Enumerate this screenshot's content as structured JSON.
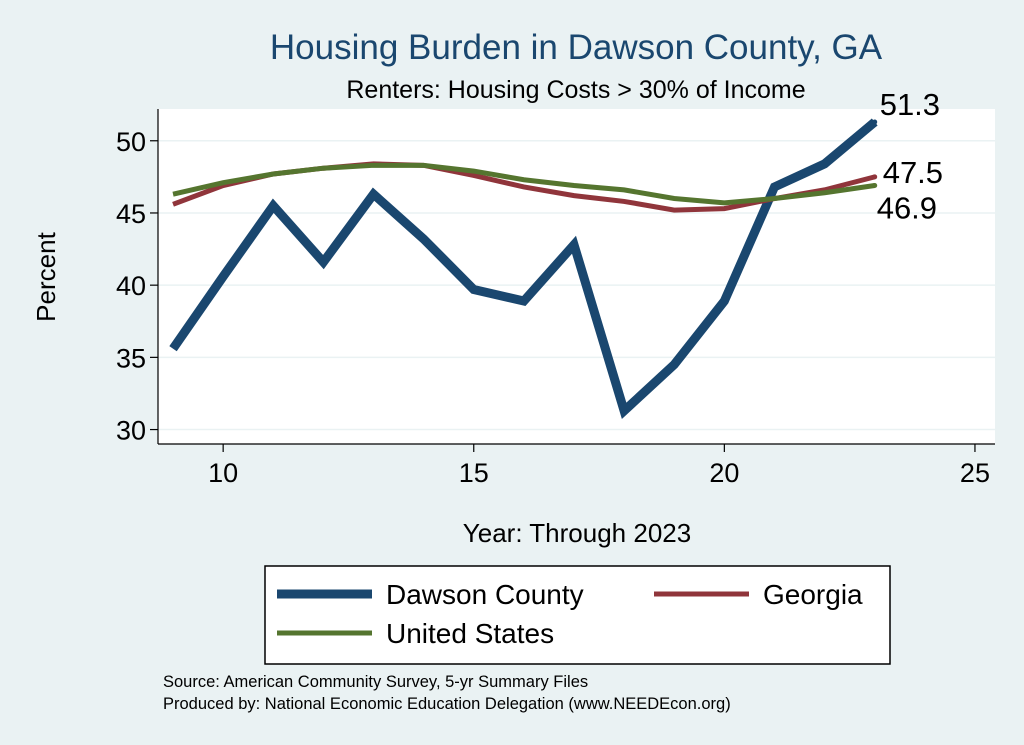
{
  "chart_data": {
    "type": "line",
    "title": "Housing Burden in Dawson County, GA",
    "subtitle": "Renters: Housing Costs > 30% of Income",
    "xlabel": "Year: Through 2023",
    "ylabel": "Percent",
    "xlim": [
      8.7,
      25.4
    ],
    "ylim": [
      29.0,
      52.2
    ],
    "x_ticks": [
      10,
      15,
      20,
      25
    ],
    "y_ticks": [
      30,
      35,
      40,
      45,
      50
    ],
    "grid": true,
    "x": [
      9,
      10,
      11,
      12,
      13,
      14,
      15,
      16,
      17,
      18,
      19,
      20,
      21,
      22,
      23
    ],
    "series": [
      {
        "name": "Dawson County",
        "color": "#1a476f",
        "values": [
          35.6,
          40.6,
          45.5,
          41.6,
          46.3,
          43.2,
          39.7,
          38.9,
          42.8,
          31.3,
          34.5,
          38.9,
          46.8,
          48.4,
          51.3
        ],
        "end_label": "51.3"
      },
      {
        "name": "Georgia",
        "color": "#90353b",
        "values": [
          45.6,
          46.9,
          47.7,
          48.1,
          48.4,
          48.3,
          47.6,
          46.8,
          46.2,
          45.8,
          45.2,
          45.3,
          46.0,
          46.6,
          47.5
        ],
        "end_label": "47.5"
      },
      {
        "name": "United States",
        "color": "#55752f",
        "values": [
          46.3,
          47.1,
          47.7,
          48.1,
          48.3,
          48.3,
          47.9,
          47.3,
          46.9,
          46.6,
          46.0,
          45.7,
          46.0,
          46.4,
          46.9
        ],
        "end_label": "46.9"
      }
    ],
    "legend_position": "bottom",
    "source_line": "Source: American Community Survey, 5-yr Summary Files",
    "producer_line": "Produced by: National Economic Education Delegation (www.NEEDEcon.org)"
  }
}
